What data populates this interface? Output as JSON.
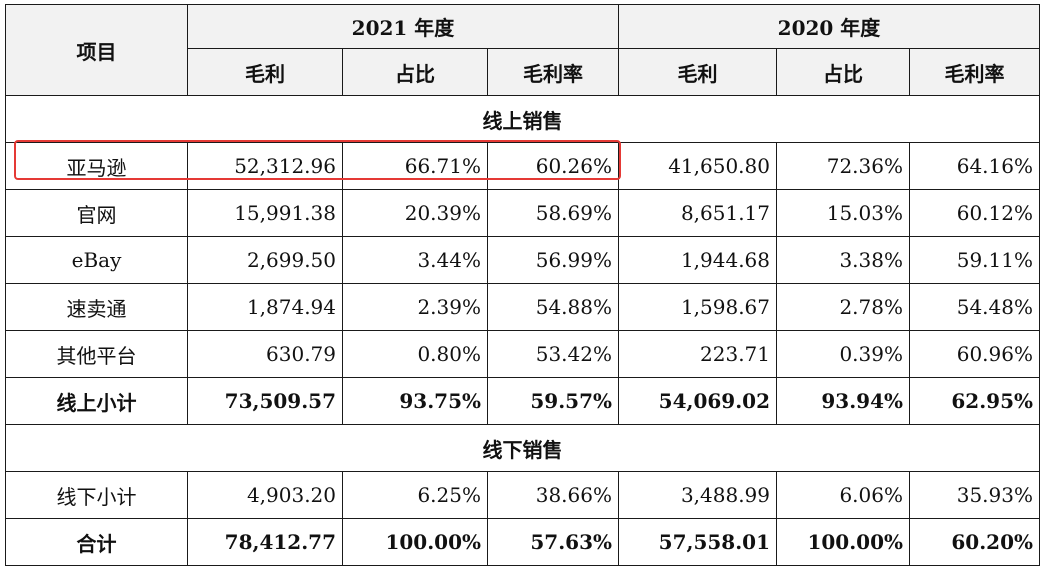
{
  "table": {
    "header": {
      "item": "项目",
      "year_2021": "2021 年度",
      "year_2020": "2020 年度",
      "gross_profit": "毛利",
      "share": "占比",
      "gross_margin": "毛利率"
    },
    "sections": {
      "online": "线上销售",
      "offline": "线下销售"
    },
    "online_rows": [
      {
        "name": "亚马逊",
        "gp_2021": "52,312.96",
        "share_2021": "66.71%",
        "margin_2021": "60.26%",
        "gp_2020": "41,650.80",
        "share_2020": "72.36%",
        "margin_2020": "64.16%"
      },
      {
        "name": "官网",
        "gp_2021": "15,991.38",
        "share_2021": "20.39%",
        "margin_2021": "58.69%",
        "gp_2020": "8,651.17",
        "share_2020": "15.03%",
        "margin_2020": "60.12%"
      },
      {
        "name": "eBay",
        "gp_2021": "2,699.50",
        "share_2021": "3.44%",
        "margin_2021": "56.99%",
        "gp_2020": "1,944.68",
        "share_2020": "3.38%",
        "margin_2020": "59.11%"
      },
      {
        "name": "速卖通",
        "gp_2021": "1,874.94",
        "share_2021": "2.39%",
        "margin_2021": "54.88%",
        "gp_2020": "1,598.67",
        "share_2020": "2.78%",
        "margin_2020": "54.48%"
      },
      {
        "name": "其他平台",
        "gp_2021": "630.79",
        "share_2021": "0.80%",
        "margin_2021": "53.42%",
        "gp_2020": "223.71",
        "share_2020": "0.39%",
        "margin_2020": "60.96%"
      }
    ],
    "online_subtotal": {
      "name": "线上小计",
      "gp_2021": "73,509.57",
      "share_2021": "93.75%",
      "margin_2021": "59.57%",
      "gp_2020": "54,069.02",
      "share_2020": "93.94%",
      "margin_2020": "62.95%"
    },
    "offline_subtotal": {
      "name": "线下小计",
      "gp_2021": "4,903.20",
      "share_2021": "6.25%",
      "margin_2021": "38.66%",
      "gp_2020": "3,488.99",
      "share_2020": "6.06%",
      "margin_2020": "35.93%"
    },
    "total": {
      "name": "合计",
      "gp_2021": "78,412.77",
      "share_2021": "100.00%",
      "margin_2021": "57.63%",
      "gp_2020": "57,558.01",
      "share_2020": "100.00%",
      "margin_2020": "60.20%"
    }
  },
  "colors": {
    "highlight": "#e53935",
    "header_bg": "#f2f2f2",
    "border": "#1a1a1a"
  }
}
